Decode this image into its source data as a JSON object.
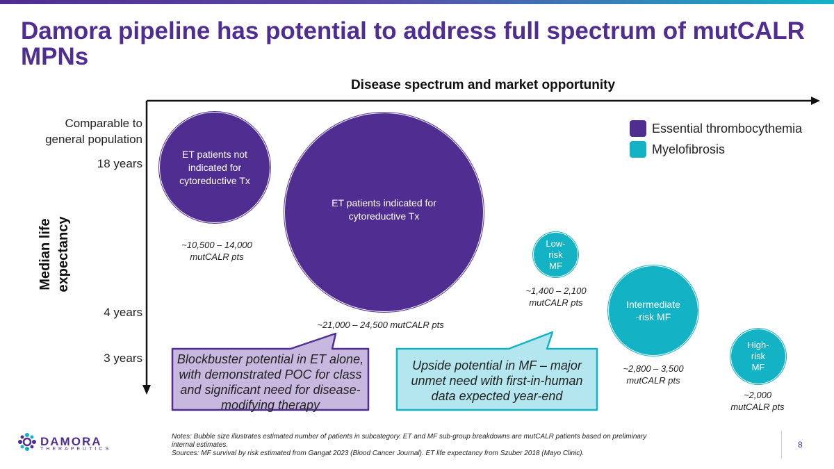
{
  "title": "Damora pipeline has potential to address full spectrum of mutCALR MPNs",
  "subtitle": "Disease spectrum and market opportunity",
  "y_axis": {
    "title_line1": "Median life",
    "title_line2": "expectancy",
    "labels": {
      "general_line1": "Comparable to",
      "general_line2": "general population",
      "y18": "18 years",
      "y4": "4 years",
      "y3": "3 years"
    }
  },
  "legend": {
    "et": "Essential thrombocythemia",
    "mf": "Myelofibrosis"
  },
  "bubbles": {
    "et_not_indicated": {
      "line1": "ET patients not",
      "line2": "indicated for",
      "line3": "cytoreductive Tx",
      "count_line1": "~10,500  – 14,000",
      "count_line2": "mutCALR pts"
    },
    "et_indicated": {
      "line1": "ET patients indicated for",
      "line2": "cytoreductive Tx",
      "count": "~21,000 – 24,500 mutCALR pts"
    },
    "low_risk_mf": {
      "line1": "Low-",
      "line2": "risk",
      "line3": "MF",
      "count_line1": "~1,400 – 2,100",
      "count_line2": "mutCALR pts"
    },
    "intermediate_mf": {
      "line1": "Intermediate",
      "line2": "-risk MF",
      "count_line1": "~2,800 – 3,500",
      "count_line2": "mutCALR pts"
    },
    "high_risk_mf": {
      "line1": "High-",
      "line2": "risk",
      "line3": "MF",
      "count_line1": "~2,000",
      "count_line2": "mutCALR pts"
    }
  },
  "callouts": {
    "et": {
      "line1": "Blockbuster potential in ET alone,",
      "line2": "with demonstrated POC for class",
      "line3": "and significant need for disease-",
      "line4": "modifying therapy"
    },
    "mf": {
      "line1": "Upside potential in MF – major",
      "line2": "unmet need with first-in-human",
      "line3": "data expected year-end"
    }
  },
  "footer": {
    "notes_line1": "Notes: Bubble size illustrates estimated number of patients in subcategory. ET and MF sub-group breakdowns are mutCALR patients based on preliminary",
    "notes_line2": "internal estimates.",
    "sources": "Sources: MF survival by risk estimated from Gangat 2023 (Blood Cancer Journal). ET life expectancy from Szuber 2018 (Mayo Clinic).",
    "page_number": "8",
    "logo_name": "DAMORA",
    "logo_sub": "THERAPEUTICS"
  },
  "colors": {
    "et": "#4f2d91",
    "mf": "#13b3c5"
  }
}
